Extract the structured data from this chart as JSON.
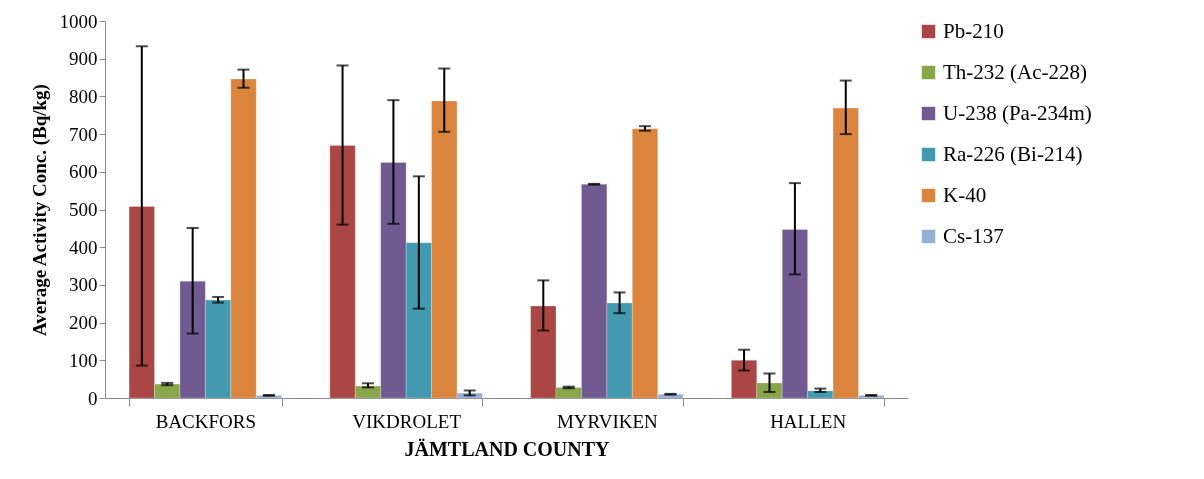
{
  "chart_data": {
    "type": "bar",
    "xlabel": "JÄMTLAND COUNTY",
    "ylabel": "Average Activity Conc. (Bq/kg)",
    "categories": [
      "BACKFORS",
      "VIKDROLET",
      "MYRVIKEN",
      "HALLEN"
    ],
    "ylim": [
      0,
      1000
    ],
    "yticks": [
      0,
      100,
      200,
      300,
      400,
      500,
      600,
      700,
      800,
      900,
      1000
    ],
    "grid": false,
    "legend": "right",
    "series": [
      {
        "name": "Pb-210",
        "color": "#aa4644",
        "values": [
          508,
          670,
          244,
          100
        ],
        "errors": [
          [
            86,
            933
          ],
          [
            460,
            882
          ],
          [
            179,
            312
          ],
          [
            73,
            128
          ]
        ]
      },
      {
        "name": "Th-232 (Ac-228)",
        "color": "#8aa64b",
        "values": [
          37,
          32,
          28,
          40
        ],
        "errors": [
          [
            34,
            40
          ],
          [
            28,
            39
          ],
          [
            26,
            30
          ],
          [
            16,
            65
          ]
        ]
      },
      {
        "name": "U-238 (Pa-234m)",
        "color": "#715a91",
        "values": [
          310,
          625,
          567,
          447
        ],
        "errors": [
          [
            171,
            451
          ],
          [
            462,
            790
          ],
          [
            566,
            568
          ],
          [
            328,
            570
          ]
        ]
      },
      {
        "name": "Ra-226 (Bi-214)",
        "color": "#4299b0",
        "values": [
          260,
          412,
          252,
          19
        ],
        "errors": [
          [
            253,
            268
          ],
          [
            237,
            588
          ],
          [
            225,
            280
          ],
          [
            16,
            25
          ]
        ]
      },
      {
        "name": "K-40",
        "color": "#db843d",
        "values": [
          846,
          788,
          714,
          769
        ],
        "errors": [
          [
            823,
            871
          ],
          [
            706,
            874
          ],
          [
            709,
            721
          ],
          [
            700,
            842
          ]
        ]
      },
      {
        "name": "Cs-137",
        "color": "#94aed6",
        "values": [
          7,
          13,
          10,
          7
        ],
        "errors": [
          [
            6,
            8
          ],
          [
            7,
            20
          ],
          [
            9,
            11
          ],
          [
            6,
            8
          ]
        ]
      }
    ]
  }
}
